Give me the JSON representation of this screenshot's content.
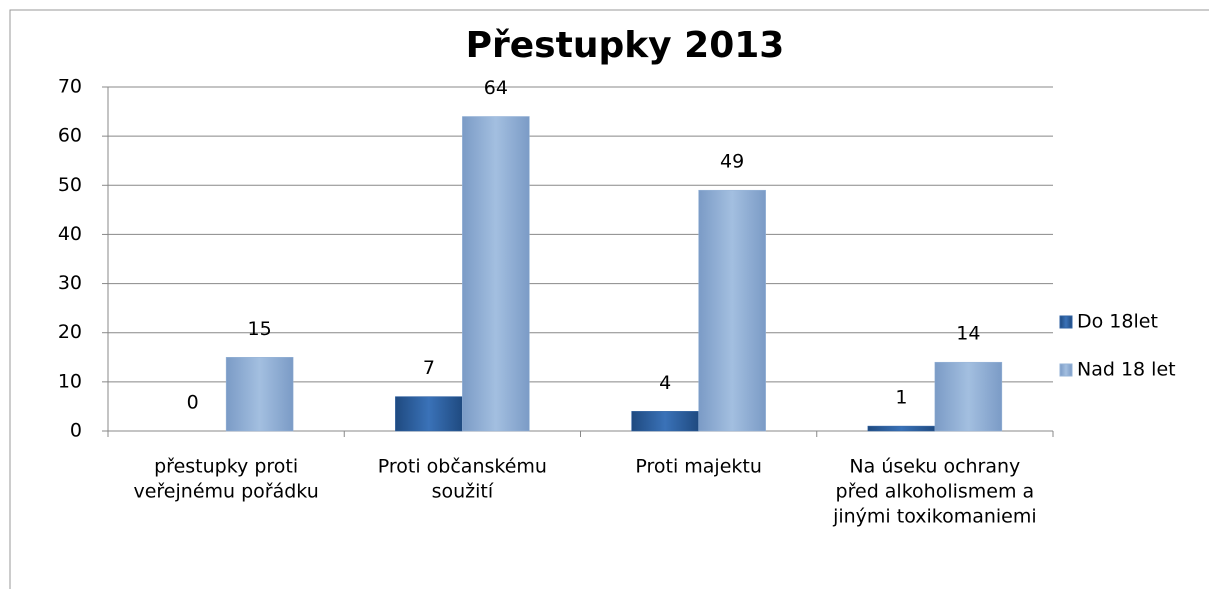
{
  "chart_data": {
    "type": "bar",
    "title": "Přestupky  2013",
    "categories": [
      [
        "přestupky proti",
        "veřejnému pořádku"
      ],
      [
        "Proti občanskému",
        "soužití"
      ],
      [
        "Proti majektu"
      ],
      [
        "Na úseku ochrany",
        "před alkoholismem a",
        "jinými toxikomaniemi"
      ]
    ],
    "series": [
      {
        "name": "Do 18let",
        "color": "#2f62a3",
        "values": [
          0,
          7,
          4,
          1
        ]
      },
      {
        "name": "Nad 18 let",
        "color": "#95b3d7",
        "values": [
          15,
          64,
          49,
          14
        ]
      }
    ],
    "ylim": [
      0,
      70
    ],
    "yticks": [
      0,
      10,
      20,
      30,
      40,
      50,
      60,
      70
    ],
    "grid": true,
    "legend": "right"
  }
}
